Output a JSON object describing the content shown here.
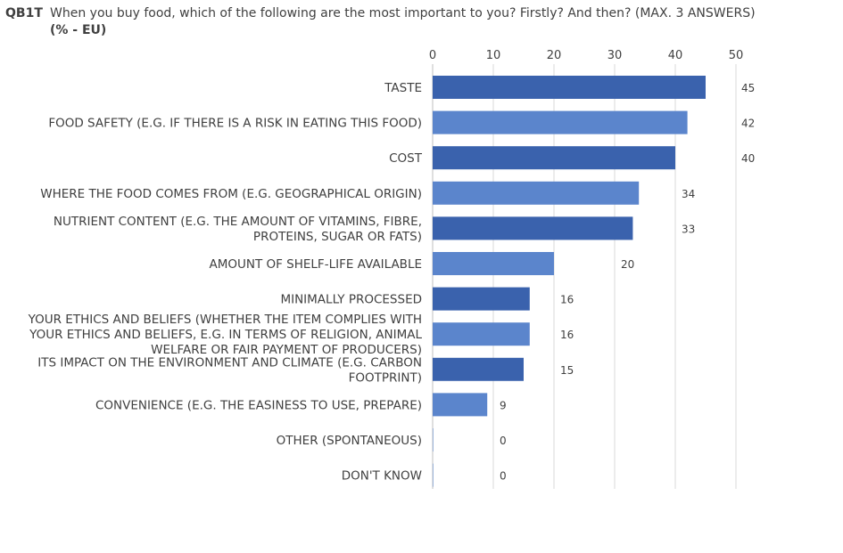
{
  "header": {
    "code": "QB1T",
    "question": "When you buy food, which of the following are the most important to you? Firstly? And then? (MAX. 3 ANSWERS)",
    "unit": "(% - EU)"
  },
  "colors": {
    "dark": "#3a62ad",
    "light": "#5b85cc",
    "grid": "#d9d9d9",
    "text": "#404040"
  },
  "chart_data": {
    "type": "bar",
    "orientation": "horizontal",
    "title": "",
    "xlabel": "",
    "ylabel": "",
    "xlim": [
      0,
      50
    ],
    "ticks": [
      0,
      10,
      20,
      30,
      40,
      50
    ],
    "grid": true,
    "categories": [
      [
        "TASTE"
      ],
      [
        "FOOD SAFETY (E.G. IF THERE IS A RISK IN EATING THIS FOOD)"
      ],
      [
        "COST"
      ],
      [
        "WHERE THE FOOD COMES FROM (E.G. GEOGRAPHICAL ORIGIN)"
      ],
      [
        "NUTRIENT CONTENT (E.G. THE AMOUNT OF VITAMINS, FIBRE,",
        "PROTEINS, SUGAR OR FATS)"
      ],
      [
        "AMOUNT OF SHELF-LIFE AVAILABLE"
      ],
      [
        "MINIMALLY PROCESSED"
      ],
      [
        "YOUR ETHICS AND BELIEFS (WHETHER THE ITEM COMPLIES WITH",
        "YOUR ETHICS AND BELIEFS, E.G. IN TERMS OF RELIGION, ANIMAL",
        "WELFARE OR FAIR PAYMENT OF PRODUCERS)"
      ],
      [
        "ITS IMPACT ON THE ENVIRONMENT AND CLIMATE (E.G. CARBON",
        "FOOTPRINT)"
      ],
      [
        "CONVENIENCE (E.G. THE EASINESS TO USE, PREPARE)"
      ],
      [
        "OTHER (SPONTANEOUS)"
      ],
      [
        "DON'T KNOW"
      ]
    ],
    "values": [
      45,
      42,
      40,
      34,
      33,
      20,
      16,
      16,
      15,
      9,
      0,
      0
    ]
  }
}
